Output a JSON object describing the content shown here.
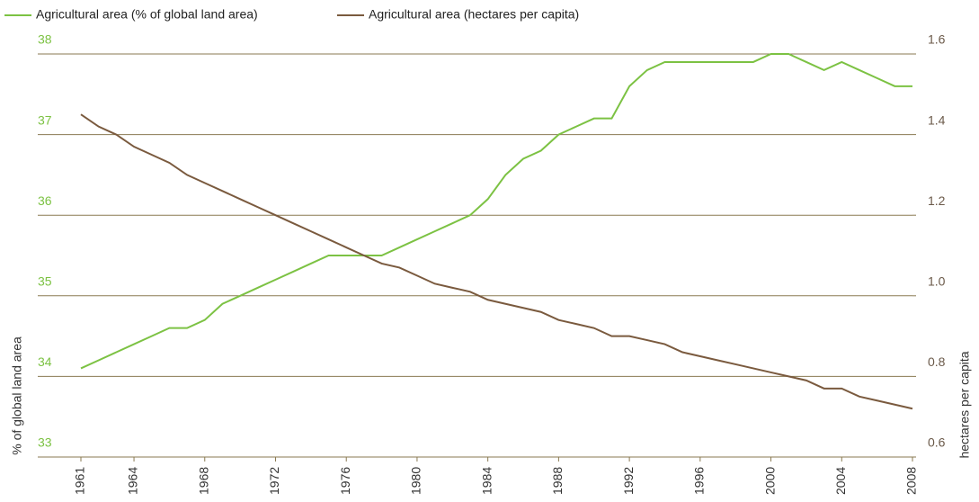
{
  "chart_data": {
    "type": "line",
    "x": [
      1961,
      1962,
      1963,
      1964,
      1965,
      1966,
      1967,
      1968,
      1969,
      1970,
      1971,
      1972,
      1973,
      1974,
      1975,
      1976,
      1977,
      1978,
      1979,
      1980,
      1981,
      1982,
      1983,
      1984,
      1985,
      1986,
      1987,
      1988,
      1989,
      1990,
      1991,
      1992,
      1993,
      1994,
      1995,
      1996,
      1997,
      1998,
      1999,
      2000,
      2001,
      2002,
      2003,
      2004,
      2005,
      2006,
      2007,
      2008
    ],
    "xlim": [
      1961,
      2008
    ],
    "xticks": [
      1961,
      1964,
      1968,
      1972,
      1976,
      1980,
      1984,
      1988,
      1992,
      1996,
      2000,
      2004,
      2008
    ],
    "ylabel": "% of global land area",
    "y2label": "hectares per capita",
    "ylim": [
      33,
      38
    ],
    "yticks": [
      33,
      34,
      35,
      36,
      37,
      38
    ],
    "y2lim": [
      0.6,
      1.6
    ],
    "y2ticks": [
      {
        "value": 0.6,
        "label": "0.6"
      },
      {
        "value": 0.8,
        "label": "0.8"
      },
      {
        "value": 1.0,
        "label": "1.0"
      },
      {
        "value": 1.2,
        "label": "1.2"
      },
      {
        "value": 1.4,
        "label": "1.4"
      },
      {
        "value": 1.6,
        "label": "1.6"
      }
    ],
    "grid": true,
    "series": [
      {
        "name": "Agricultural area (% of global land area)",
        "color": "#7cc243",
        "values": [
          34.1,
          34.2,
          34.3,
          34.4,
          34.5,
          34.6,
          34.6,
          34.7,
          34.9,
          35.0,
          35.1,
          35.2,
          35.3,
          35.4,
          35.5,
          35.5,
          35.5,
          35.5,
          35.6,
          35.7,
          35.8,
          35.9,
          36.0,
          36.2,
          36.5,
          36.7,
          36.8,
          37.0,
          37.1,
          37.2,
          37.2,
          37.6,
          37.8,
          37.9,
          37.9,
          37.9,
          37.9,
          37.9,
          37.9,
          38.0,
          38.0,
          37.9,
          37.8,
          37.9,
          37.8,
          37.7,
          37.6,
          37.6
        ]
      },
      {
        "name": "Agricultural area (hectares per capita)",
        "color": "#7a5a3e",
        "axis": "y2",
        "values": [
          1.45,
          1.42,
          1.4,
          1.37,
          1.35,
          1.33,
          1.3,
          1.28,
          1.26,
          1.24,
          1.22,
          1.2,
          1.18,
          1.16,
          1.14,
          1.12,
          1.1,
          1.08,
          1.07,
          1.05,
          1.03,
          1.02,
          1.01,
          0.99,
          0.98,
          0.97,
          0.96,
          0.94,
          0.93,
          0.92,
          0.9,
          0.9,
          0.89,
          0.88,
          0.86,
          0.85,
          0.84,
          0.83,
          0.82,
          0.81,
          0.8,
          0.79,
          0.77,
          0.77,
          0.75,
          0.74,
          0.73,
          0.72
        ]
      }
    ]
  }
}
